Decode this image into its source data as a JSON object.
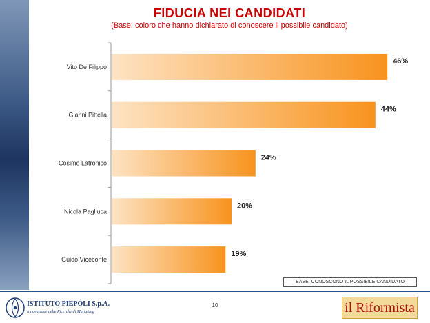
{
  "header": {
    "title": "FIDUCIA NEI CANDIDATI",
    "subtitle": "(Base: coloro che hanno dichiarato di conoscere il possibile candidato)"
  },
  "chart_data": {
    "type": "bar",
    "orientation": "horizontal",
    "categories": [
      "Vito De Filippo",
      "Gianni Pittella",
      "Cosimo Latronico",
      "Nicola Pagliuca",
      "Guido Viceconte"
    ],
    "values": [
      46,
      44,
      24,
      20,
      19
    ],
    "value_labels": [
      "46%",
      "44%",
      "24%",
      "20%",
      "19%"
    ],
    "xlim": [
      0,
      50
    ],
    "grid": false,
    "bar_color_start": "#fde3c4",
    "bar_color_end": "#f7931e"
  },
  "base_note": "BASE: CONOSCONO IL POSSIBILE CANDIDATO",
  "footer": {
    "company": "ISTITUTO PIEPOLI S.p.A.",
    "tagline": "Innovazione nelle Ricerche di Marketing",
    "page_number": "10",
    "brand": "il Riformista"
  },
  "colors": {
    "title": "#cc0000",
    "footer_line": "#2a4f8a"
  }
}
